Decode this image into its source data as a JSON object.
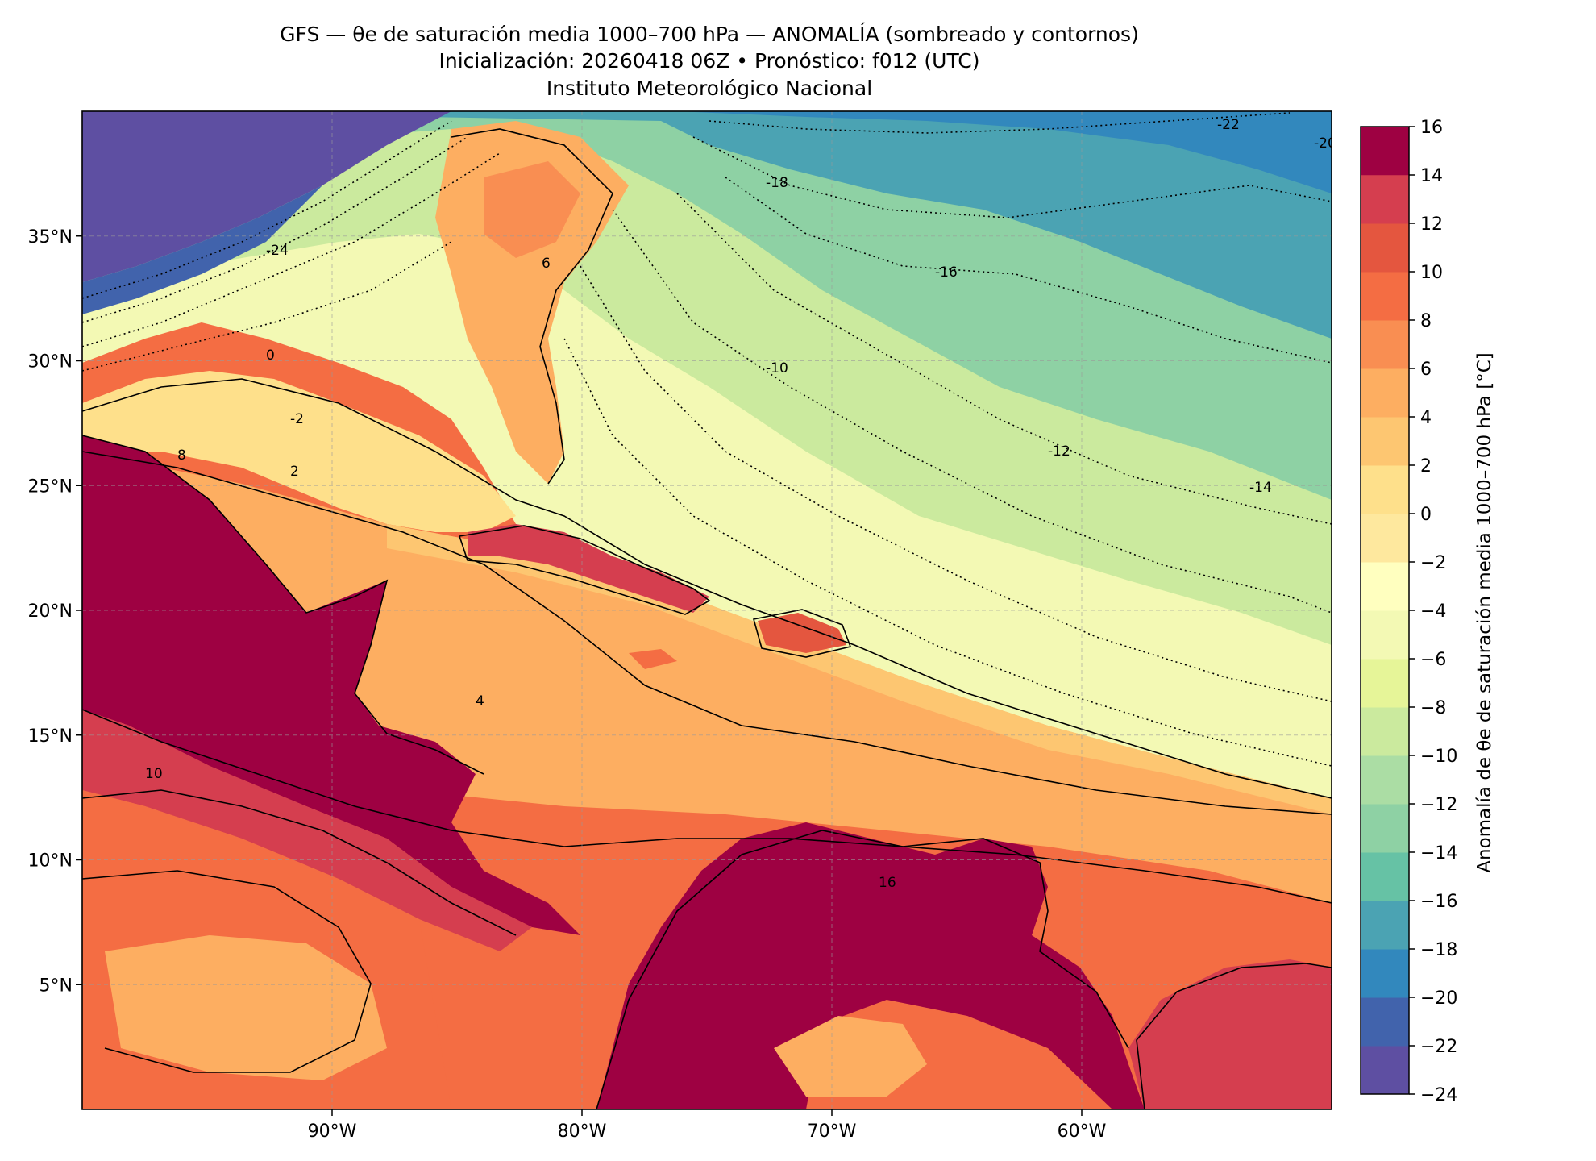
{
  "title": {
    "line1": "GFS — θe de saturación media 1000–700 hPa — ANOMALÍA (sombreado y contornos)",
    "line2": "Inicialización: 20260418 06Z   •   Pronóstico: f012 (UTC)",
    "line3": "Instituto Meteorológico Nacional"
  },
  "chart_data": {
    "type": "heatmap",
    "description_of_variable": "Anomalía de θe de saturación media 1000–700 hPa [°C]",
    "x_axis": {
      "label": "",
      "range": [
        -100,
        -50
      ],
      "ticks": [
        "90°W",
        "80°W",
        "70°W",
        "60°W"
      ],
      "tick_values": [
        -90,
        -80,
        -70,
        -60
      ]
    },
    "y_axis": {
      "label": "",
      "range": [
        0,
        40
      ],
      "ticks": [
        "5°N",
        "10°N",
        "15°N",
        "20°N",
        "25°N",
        "30°N",
        "35°N"
      ],
      "tick_values": [
        5,
        10,
        15,
        20,
        25,
        30,
        35
      ]
    },
    "grid": true,
    "colorbar": {
      "label": "Anomalía de θe de saturación media 1000–700 hPa [°C]",
      "range": [
        -24,
        16
      ],
      "step": 2,
      "tick_labels": [
        "16",
        "14",
        "12",
        "10",
        "8",
        "6",
        "4",
        "2",
        "0",
        "−2",
        "−4",
        "−6",
        "−8",
        "−10",
        "−12",
        "−14",
        "−16",
        "−18",
        "−20",
        "−22",
        "−24"
      ],
      "colors": [
        "#5e4fa2",
        "#4163ac",
        "#3288bd",
        "#4ba3b3",
        "#66c2a5",
        "#8ed1a4",
        "#abdda4",
        "#cbea9e",
        "#e6f598",
        "#f3f9b4",
        "#ffffbf",
        "#fee89e",
        "#fee08b",
        "#fdc671",
        "#fdae61",
        "#f98e52",
        "#f46d43",
        "#e4563f",
        "#d53e4f",
        "#b8204a",
        "#9e0142"
      ]
    },
    "contour_labels": [
      "-24",
      "-22",
      "-20",
      "-18",
      "-16",
      "-14",
      "-12",
      "-10",
      "-2",
      "0",
      "2",
      "4",
      "6",
      "8",
      "10",
      "16"
    ],
    "fields": {
      "northwest_land_anomaly": -24,
      "western_atlantic_north": -22,
      "central_atlantic": -16,
      "subtropical_atlantic": -10,
      "bahamas_region": -2,
      "gulf_of_mexico": 0,
      "caribbean_sea": 4,
      "mexico_central_america": 16,
      "northern_south_america": 16,
      "eastern_pacific": 8
    }
  }
}
